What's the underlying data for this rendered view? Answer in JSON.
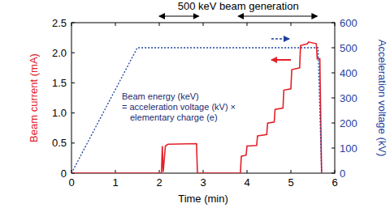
{
  "chart_data": {
    "type": "line",
    "xlabel": "Time (min)",
    "ylabel": "Beam current (mA)",
    "y2label": "Acceleration voltage (kV)",
    "xlim": [
      0,
      6
    ],
    "xticks": [
      0,
      1,
      2,
      3,
      4,
      5,
      6
    ],
    "ylim": [
      0,
      2.5
    ],
    "yticks": [
      0,
      0.5,
      {
        "value": 1,
        "label": "1.0"
      },
      1.5,
      {
        "value": 2,
        "label": "2.0"
      },
      2.5
    ],
    "y2lim": [
      0,
      600
    ],
    "y2ticks": [
      0,
      100,
      200,
      300,
      400,
      500,
      600
    ],
    "grid": false,
    "annotations": [
      {
        "text": "500 keV beam generation",
        "spans": [
          [
            2.0,
            2.9
          ],
          [
            3.8,
            5.6
          ]
        ]
      },
      {
        "lines": [
          "Beam energy (keV)",
          "= acceleration voltage (kV) ×",
          "elementary charge (e)"
        ]
      }
    ],
    "series": [
      {
        "color": "#e3202a",
        "axis": "y",
        "line_style": "solid",
        "x": [
          0,
          2.05,
          2.07,
          2.09,
          2.14,
          2.2,
          2.85,
          2.87,
          3.85,
          3.87,
          3.98,
          4.0,
          4.22,
          4.24,
          4.45,
          4.47,
          4.62,
          4.64,
          4.82,
          4.84,
          5.0,
          5.02,
          5.2,
          5.22,
          5.38,
          5.4,
          5.58,
          5.6,
          5.66,
          5.7
        ],
        "values": [
          0,
          0,
          0.45,
          0.02,
          0.45,
          0.48,
          0.49,
          0,
          0,
          0.28,
          0.3,
          0.45,
          0.46,
          0.62,
          0.64,
          0.83,
          0.85,
          1.06,
          1.08,
          1.38,
          1.4,
          1.72,
          1.75,
          2.12,
          2.15,
          2.18,
          2.15,
          1.9,
          1.9,
          0
        ]
      },
      {
        "color": "#1f3f9e",
        "axis": "y2",
        "line_style": "dotted",
        "x": [
          0,
          1.5,
          5.62,
          5.7
        ],
        "values": [
          0,
          500,
          500,
          0
        ]
      }
    ]
  }
}
